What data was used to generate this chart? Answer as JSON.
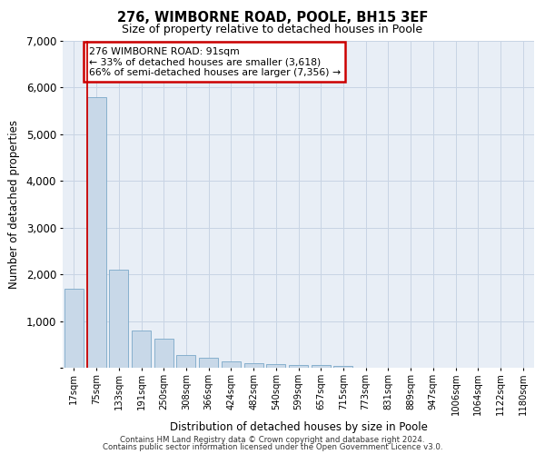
{
  "title_line1": "276, WIMBORNE ROAD, POOLE, BH15 3EF",
  "title_line2": "Size of property relative to detached houses in Poole",
  "xlabel": "Distribution of detached houses by size in Poole",
  "ylabel": "Number of detached properties",
  "categories": [
    "17sqm",
    "75sqm",
    "133sqm",
    "191sqm",
    "250sqm",
    "308sqm",
    "366sqm",
    "424sqm",
    "482sqm",
    "540sqm",
    "599sqm",
    "657sqm",
    "715sqm",
    "773sqm",
    "831sqm",
    "889sqm",
    "947sqm",
    "1006sqm",
    "1064sqm",
    "1122sqm",
    "1180sqm"
  ],
  "values": [
    1700,
    5800,
    2100,
    800,
    630,
    280,
    220,
    130,
    100,
    80,
    60,
    55,
    40,
    0,
    0,
    0,
    0,
    0,
    0,
    0,
    0
  ],
  "bar_color": "#c8d8e8",
  "bar_edge_color": "#7aa8c8",
  "annotation_text": "276 WIMBORNE ROAD: 91sqm\n← 33% of detached houses are smaller (3,618)\n66% of semi-detached houses are larger (7,356) →",
  "annotation_box_color": "#ffffff",
  "annotation_box_edge_color": "#cc0000",
  "red_line_x": 0.575,
  "grid_color": "#c8d4e4",
  "plot_bg_color": "#e8eef6",
  "footer_line1": "Contains HM Land Registry data © Crown copyright and database right 2024.",
  "footer_line2": "Contains public sector information licensed under the Open Government Licence v3.0.",
  "ylim": [
    0,
    7000
  ],
  "yticks": [
    0,
    1000,
    2000,
    3000,
    4000,
    5000,
    6000,
    7000
  ]
}
